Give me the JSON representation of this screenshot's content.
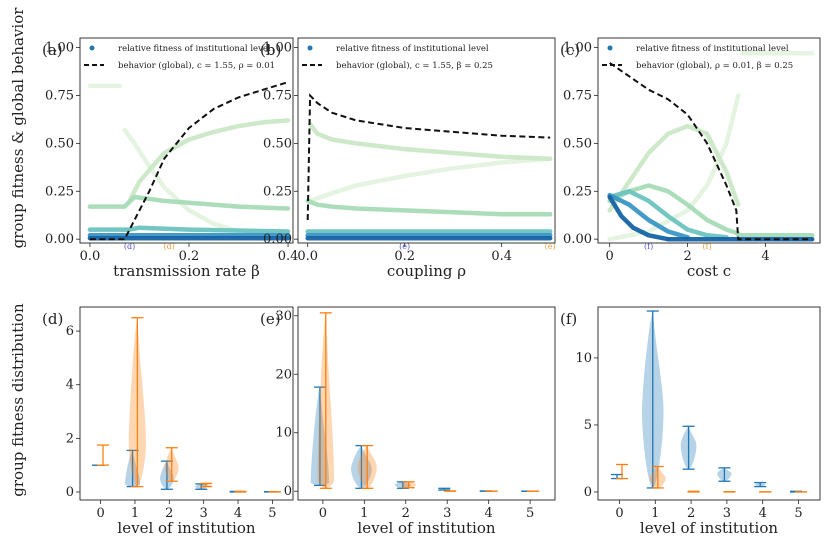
{
  "y_label_top": "group fitness & global behavior",
  "y_label_bottom": "group fitness distribution",
  "legend": {
    "dots": "relative fitness of institutional level",
    "line_a": "behavior (global), c = 1.55, ρ = 0.01",
    "line_b": "behavior (global), c = 1.55, β = 0.25",
    "line_c": "behavior (global), ρ = 0.01, β = 0.25"
  },
  "colors": {
    "levels": [
      "#e4f2df",
      "#cbe8c7",
      "#a6dbb6",
      "#6cc3bf",
      "#3a96c4",
      "#1663a6"
    ],
    "behavior": "#111111",
    "blue": "#1f77b4",
    "orange": "#ff7f0e"
  },
  "chart_data": [
    {
      "panel": "(a)",
      "type": "line",
      "xlabel": "transmission rate β",
      "xlim": [
        -0.02,
        0.41
      ],
      "ylim": [
        -0.02,
        1.05
      ],
      "xticks": [
        "0.0",
        "0.2",
        "0.4"
      ],
      "yticks": [
        "0.00",
        "0.25",
        "0.50",
        "0.75",
        "1.00"
      ],
      "markers": [
        {
          "label": "(d)",
          "x": 0.08,
          "color": "#5555cc"
        },
        {
          "label": "(d)",
          "x": 0.16,
          "color": "#e8a040"
        }
      ],
      "behavior": {
        "x": [
          0.0,
          0.07,
          0.09,
          0.12,
          0.15,
          0.2,
          0.25,
          0.3,
          0.35,
          0.4
        ],
        "y": [
          0.0,
          0.0,
          0.1,
          0.25,
          0.42,
          0.58,
          0.68,
          0.74,
          0.78,
          0.82
        ]
      },
      "levels": [
        {
          "level": 0,
          "x": [
            0.0,
            0.06
          ],
          "y": [
            0.8,
            0.8
          ]
        },
        {
          "level": 0,
          "x": [
            0.07,
            0.09,
            0.12,
            0.15,
            0.2,
            0.25,
            0.3
          ],
          "y": [
            0.57,
            0.5,
            0.38,
            0.27,
            0.15,
            0.08,
            0.04
          ]
        },
        {
          "level": 1,
          "x": [
            0.08,
            0.1,
            0.15,
            0.2,
            0.25,
            0.3,
            0.35,
            0.4
          ],
          "y": [
            0.2,
            0.3,
            0.45,
            0.52,
            0.56,
            0.59,
            0.61,
            0.62
          ]
        },
        {
          "level": 2,
          "x": [
            0.0,
            0.07,
            0.09,
            0.12,
            0.15,
            0.2,
            0.3,
            0.4
          ],
          "y": [
            0.17,
            0.17,
            0.22,
            0.21,
            0.2,
            0.19,
            0.17,
            0.16
          ]
        },
        {
          "level": 3,
          "x": [
            0.0,
            0.08,
            0.1,
            0.2,
            0.4
          ],
          "y": [
            0.05,
            0.05,
            0.06,
            0.05,
            0.04
          ]
        },
        {
          "level": 4,
          "x": [
            0.0,
            0.08,
            0.2,
            0.4
          ],
          "y": [
            0.02,
            0.02,
            0.02,
            0.02
          ]
        },
        {
          "level": 5,
          "x": [
            0.0,
            0.4
          ],
          "y": [
            0.005,
            0.005
          ]
        }
      ]
    },
    {
      "panel": "(b)",
      "type": "line",
      "xlabel": "coupling ρ",
      "xlim": [
        -0.02,
        0.51
      ],
      "ylim": [
        -0.02,
        1.05
      ],
      "xticks": [
        "0.0",
        "0.2",
        "0.4"
      ],
      "yticks": [
        "0.00",
        "0.25",
        "0.50",
        "0.75",
        "1.00"
      ],
      "markers": [
        {
          "label": "(e)",
          "x": 0.2,
          "color": "#5555cc"
        },
        {
          "label": "(e)",
          "x": 0.5,
          "color": "#e8a040"
        }
      ],
      "behavior": {
        "x": [
          0.0,
          0.005,
          0.02,
          0.05,
          0.1,
          0.2,
          0.3,
          0.4,
          0.5
        ],
        "y": [
          0.1,
          0.75,
          0.71,
          0.66,
          0.62,
          0.58,
          0.56,
          0.54,
          0.53
        ]
      },
      "levels": [
        {
          "level": 0,
          "x": [
            0.005,
            0.05,
            0.1,
            0.2,
            0.3,
            0.4,
            0.5
          ],
          "y": [
            0.2,
            0.24,
            0.28,
            0.33,
            0.37,
            0.4,
            0.42
          ]
        },
        {
          "level": 1,
          "x": [
            0.005,
            0.02,
            0.05,
            0.1,
            0.2,
            0.3,
            0.4,
            0.5
          ],
          "y": [
            0.6,
            0.55,
            0.52,
            0.5,
            0.47,
            0.45,
            0.43,
            0.42
          ]
        },
        {
          "level": 2,
          "x": [
            0.0,
            0.02,
            0.05,
            0.1,
            0.2,
            0.3,
            0.4,
            0.5
          ],
          "y": [
            0.2,
            0.18,
            0.17,
            0.16,
            0.15,
            0.14,
            0.13,
            0.13
          ]
        },
        {
          "level": 3,
          "x": [
            0.0,
            0.5
          ],
          "y": [
            0.04,
            0.04
          ]
        },
        {
          "level": 4,
          "x": [
            0.0,
            0.5
          ],
          "y": [
            0.02,
            0.02
          ]
        },
        {
          "level": 5,
          "x": [
            0.0,
            0.5
          ],
          "y": [
            0.005,
            0.005
          ]
        }
      ]
    },
    {
      "panel": "(c)",
      "type": "line",
      "xlabel": "cost c",
      "xlim": [
        -0.3,
        5.4
      ],
      "ylim": [
        -0.02,
        1.05
      ],
      "xticks": [
        "0",
        "2",
        "4"
      ],
      "yticks": [
        "0.00",
        "0.25",
        "0.50",
        "0.75",
        "1.00"
      ],
      "markers": [
        {
          "label": "(f)",
          "x": 1.0,
          "color": "#5555cc"
        },
        {
          "label": "(f)",
          "x": 2.5,
          "color": "#e8a040"
        }
      ],
      "behavior": {
        "x": [
          0.0,
          0.5,
          1.0,
          1.5,
          2.0,
          2.5,
          3.0,
          3.25,
          3.3,
          3.5,
          5.2
        ],
        "y": [
          0.92,
          0.85,
          0.78,
          0.73,
          0.65,
          0.5,
          0.28,
          0.15,
          0.0,
          0.0,
          0.0
        ]
      },
      "levels": [
        {
          "level": 0,
          "x": [
            0.0,
            1.0,
            2.0,
            2.5,
            3.0,
            3.3
          ],
          "y": [
            0.0,
            0.04,
            0.15,
            0.28,
            0.5,
            0.75
          ]
        },
        {
          "level": 0,
          "x": [
            3.4,
            5.2
          ],
          "y": [
            0.97,
            0.97
          ]
        },
        {
          "level": 1,
          "x": [
            0.0,
            0.5,
            1.0,
            1.5,
            2.0,
            2.5,
            3.0,
            3.3
          ],
          "y": [
            0.15,
            0.3,
            0.45,
            0.55,
            0.59,
            0.55,
            0.35,
            0.18
          ]
        },
        {
          "level": 2,
          "x": [
            0.0,
            0.5,
            1.0,
            1.5,
            2.0,
            2.5,
            3.0,
            3.3
          ],
          "y": [
            0.2,
            0.25,
            0.28,
            0.25,
            0.18,
            0.1,
            0.05,
            0.03
          ]
        },
        {
          "level": 3,
          "x": [
            0.0,
            0.5,
            1.0,
            1.5,
            2.0,
            2.5,
            3.0
          ],
          "y": [
            0.22,
            0.25,
            0.2,
            0.12,
            0.05,
            0.02,
            0.01
          ]
        },
        {
          "level": 4,
          "x": [
            0.0,
            0.5,
            1.0,
            1.5,
            2.0
          ],
          "y": [
            0.23,
            0.18,
            0.1,
            0.04,
            0.01
          ]
        },
        {
          "level": 5,
          "x": [
            0.0,
            0.3,
            0.6,
            1.0,
            1.5
          ],
          "y": [
            0.22,
            0.12,
            0.06,
            0.02,
            0.0
          ]
        },
        {
          "level": 2,
          "x": [
            3.3,
            5.2
          ],
          "y": [
            0.02,
            0.02
          ]
        },
        {
          "level": 5,
          "x": [
            1.5,
            5.2
          ],
          "y": [
            0.0,
            0.0
          ]
        }
      ]
    },
    {
      "panel": "(d)",
      "type": "violin",
      "xlabel": "level of institution",
      "xlim": [
        -0.6,
        5.6
      ],
      "ylim": [
        -0.3,
        6.9
      ],
      "xticks": [
        "0",
        "1",
        "2",
        "3",
        "4",
        "5"
      ],
      "yticks": [
        "0",
        "2",
        "4",
        "6"
      ],
      "series": [
        {
          "name": "blue",
          "items": [
            {
              "level": 0,
              "min": 1.0,
              "max": 1.0,
              "w": 0.0
            },
            {
              "level": 1,
              "min": 0.2,
              "max": 1.55,
              "w": 0.22,
              "mode": 0.3
            },
            {
              "level": 2,
              "min": 0.1,
              "max": 1.15,
              "w": 0.2,
              "mode": 0.5
            },
            {
              "level": 3,
              "min": 0.1,
              "max": 0.3,
              "w": 0.18,
              "mode": 0.2
            },
            {
              "level": 4,
              "min": 0.0,
              "max": 0.02,
              "w": 0.1
            },
            {
              "level": 5,
              "min": 0.0,
              "max": 0.01,
              "w": 0.1
            }
          ]
        },
        {
          "name": "orange",
          "items": [
            {
              "level": 0,
              "min": 1.0,
              "max": 1.75,
              "w": 0.0
            },
            {
              "level": 1,
              "min": 0.2,
              "max": 6.5,
              "w": 0.25,
              "mode": 1.8
            },
            {
              "level": 2,
              "min": 0.4,
              "max": 1.65,
              "w": 0.2,
              "mode": 0.9
            },
            {
              "level": 3,
              "min": 0.2,
              "max": 0.32,
              "w": 0.15,
              "mode": 0.25
            },
            {
              "level": 4,
              "min": 0.0,
              "max": 0.02,
              "w": 0.1
            },
            {
              "level": 5,
              "min": 0.0,
              "max": 0.01,
              "w": 0.1
            }
          ]
        }
      ]
    },
    {
      "panel": "(e)",
      "type": "violin",
      "xlabel": "level of institution",
      "xlim": [
        -0.6,
        5.6
      ],
      "ylim": [
        -1.5,
        31.5
      ],
      "xticks": [
        "0",
        "1",
        "2",
        "3",
        "4",
        "5"
      ],
      "yticks": [
        "0",
        "10",
        "20",
        "30"
      ],
      "series": [
        {
          "name": "blue",
          "items": [
            {
              "level": 0,
              "min": 1.0,
              "max": 17.8,
              "w": 0.22,
              "mode": 1.5
            },
            {
              "level": 1,
              "min": 0.5,
              "max": 7.8,
              "w": 0.25,
              "mode": 3.8
            },
            {
              "level": 2,
              "min": 0.5,
              "max": 1.6,
              "w": 0.2,
              "mode": 1.1
            },
            {
              "level": 3,
              "min": 0.2,
              "max": 0.5,
              "w": 0.12,
              "mode": 0.3
            },
            {
              "level": 4,
              "min": 0.0,
              "max": 0.05,
              "w": 0.1
            },
            {
              "level": 5,
              "min": 0.0,
              "max": 0.02,
              "w": 0.1
            }
          ]
        },
        {
          "name": "orange",
          "items": [
            {
              "level": 0,
              "min": 0.5,
              "max": 30.5,
              "w": 0.2,
              "mode": 2.0
            },
            {
              "level": 1,
              "min": 0.5,
              "max": 7.8,
              "w": 0.23,
              "mode": 4.2
            },
            {
              "level": 2,
              "min": 0.6,
              "max": 1.6,
              "w": 0.18,
              "mode": 1.2
            },
            {
              "level": 3,
              "min": 0.0,
              "max": 0.05,
              "w": 0.1
            },
            {
              "level": 4,
              "min": 0.0,
              "max": 0.02,
              "w": 0.1
            },
            {
              "level": 5,
              "min": 0.0,
              "max": 0.01,
              "w": 0.1
            }
          ]
        }
      ]
    },
    {
      "panel": "(f)",
      "type": "violin",
      "xlabel": "level of institution",
      "xlim": [
        -0.6,
        5.6
      ],
      "ylim": [
        -0.6,
        13.8
      ],
      "xticks": [
        "0",
        "1",
        "2",
        "3",
        "4",
        "5"
      ],
      "yticks": [
        "0",
        "5",
        "10"
      ],
      "series": [
        {
          "name": "blue",
          "items": [
            {
              "level": 0,
              "min": 1.0,
              "max": 1.3,
              "w": 0.0
            },
            {
              "level": 1,
              "min": 0.3,
              "max": 13.5,
              "w": 0.3,
              "mode": 6.0
            },
            {
              "level": 2,
              "min": 1.7,
              "max": 4.9,
              "w": 0.22,
              "mode": 3.5
            },
            {
              "level": 3,
              "min": 0.8,
              "max": 1.8,
              "w": 0.2,
              "mode": 1.4
            },
            {
              "level": 4,
              "min": 0.4,
              "max": 0.7,
              "w": 0.15,
              "mode": 0.55
            },
            {
              "level": 5,
              "min": 0.0,
              "max": 0.05,
              "w": 0.1
            }
          ]
        },
        {
          "name": "orange",
          "items": [
            {
              "level": 0,
              "min": 1.0,
              "max": 2.05,
              "w": 0.0
            },
            {
              "level": 1,
              "min": 0.3,
              "max": 1.9,
              "w": 0.22,
              "mode": 1.0
            },
            {
              "level": 2,
              "min": 0.0,
              "max": 0.05,
              "w": 0.1
            },
            {
              "level": 3,
              "min": 0.0,
              "max": 0.02,
              "w": 0.1
            },
            {
              "level": 4,
              "min": 0.0,
              "max": 0.01,
              "w": 0.1
            },
            {
              "level": 5,
              "min": 0.0,
              "max": 0.01,
              "w": 0.1
            }
          ]
        }
      ]
    }
  ]
}
